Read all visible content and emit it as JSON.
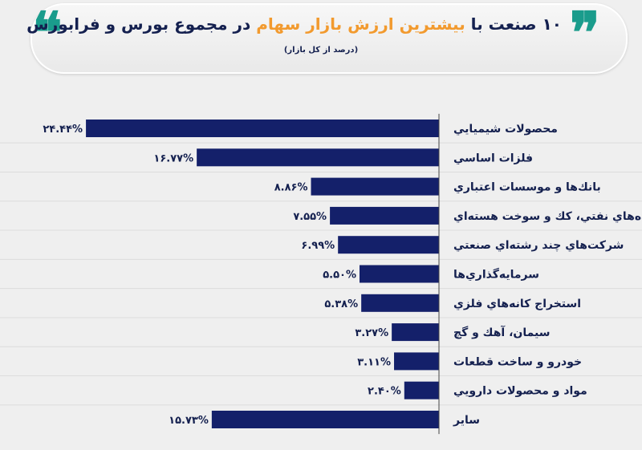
{
  "header": {
    "title_pre": "۱۰ صنعت با ",
    "title_highlight": "بیشترین ارزش بازار سهام",
    "title_post": " در مجموع بورس و فرابورس",
    "subtitle": "(درصد از کل بازار)",
    "quote_open": "❞",
    "quote_close": "❝"
  },
  "colors": {
    "bar": "#14206a",
    "text": "#14204f",
    "highlight": "#f29a2e",
    "quote": "#1a9c8c",
    "background": "#efefef"
  },
  "chart_data": {
    "type": "bar",
    "orientation": "horizontal",
    "title": "۱۰ صنعت با بیشترین ارزش بازار سهام در مجموع بورس و فرابورس",
    "subtitle": "(درصد از کل بازار)",
    "categories": [
      "محصولات شيميايي",
      "فلزات اساسي",
      "بانك‌ها و موسسات اعتباري",
      "رده‌هاي نفتي، كك و سوخت هسته‌اي",
      "شركت‌هاي چند رشته‌اي صنعتي",
      "سرمايه‌گذاري‌ها",
      "استخراج كانه‌هاي فلزي",
      "سيمان، آهك و گچ",
      "خودرو و ساخت قطعات",
      "مواد و محصولات دارويي",
      "ساير"
    ],
    "values": [
      24.44,
      16.77,
      8.86,
      7.55,
      6.99,
      5.5,
      5.38,
      3.27,
      3.11,
      2.4,
      15.73
    ],
    "value_labels": [
      "۲۴.۴۴%",
      "۱۶.۷۷%",
      "۸.۸۶%",
      "۷.۵۵%",
      "۶.۹۹%",
      "۵.۵۰%",
      "۵.۳۸%",
      "۳.۲۷%",
      "۳.۱۱%",
      "۲.۴۰%",
      "۱۵.۷۳%"
    ],
    "xlabel": "",
    "ylabel": "",
    "grid": false
  }
}
